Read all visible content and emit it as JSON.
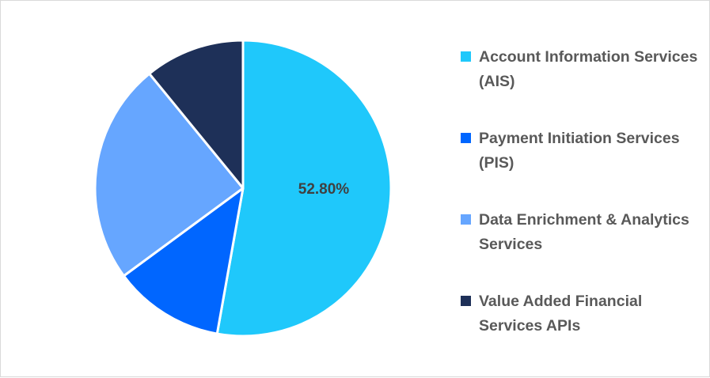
{
  "chart_data": {
    "type": "pie",
    "title": "",
    "labels": [
      "Account Information Services (AIS)",
      "Payment Initiation Services (PIS)",
      "Data Enrichment & Analytics Services",
      "Value Added Financial Services APIs"
    ],
    "values": [
      52.8,
      12.1,
      24.2,
      10.9
    ],
    "colors": [
      "#1fc8fb",
      "#0066ff",
      "#66a6ff",
      "#1e3058"
    ],
    "data_labels": [
      "52.80%",
      "",
      "",
      ""
    ],
    "start_angle": "12 o'clock, clockwise",
    "legend_position": "right"
  },
  "legend": {
    "items": [
      {
        "label": "Account Information Services (AIS)",
        "color": "#1fc8fb"
      },
      {
        "label": "Payment Initiation Services (PIS)",
        "color": "#0066ff"
      },
      {
        "label": "Data Enrichment & Analytics Services",
        "color": "#66a6ff"
      },
      {
        "label": "Value Added Financial Services APIs",
        "color": "#1e3058"
      }
    ]
  },
  "pie": {
    "center_label": "52.80%"
  }
}
